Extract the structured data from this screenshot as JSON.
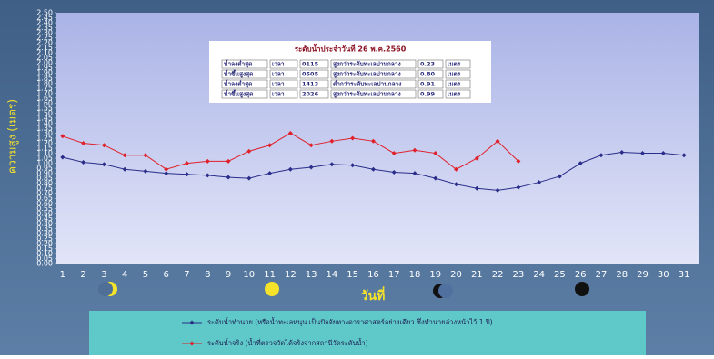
{
  "chart_data": {
    "type": "line",
    "ylabel": "ความสูง (เมตร)",
    "xlabel": "วันที่",
    "categories": [
      "1",
      "2",
      "3",
      "4",
      "5",
      "6",
      "7",
      "8",
      "9",
      "10",
      "11",
      "12",
      "13",
      "14",
      "15",
      "16",
      "17",
      "18",
      "19",
      "20",
      "21",
      "22",
      "23",
      "24",
      "25",
      "26",
      "27",
      "28",
      "29",
      "30",
      "31"
    ],
    "series": [
      {
        "name": "ระดับน้ำทำนาย (หรือน้ำทะเลหนุน เป็นปัจจัยทางดาราศาสตร์อย่างเดียว ซึ่งทำนายล่วงหน้าไว้ 1 ปี)",
        "color": "#2a2e8a",
        "values": [
          1.06,
          1.01,
          0.99,
          0.94,
          0.92,
          0.9,
          0.89,
          0.88,
          0.86,
          0.85,
          0.9,
          0.94,
          0.96,
          0.99,
          0.98,
          0.94,
          0.91,
          0.9,
          0.85,
          0.79,
          0.75,
          0.73,
          0.76,
          0.81,
          0.87,
          1.0,
          1.08,
          1.11,
          1.1,
          1.1,
          1.08
        ]
      },
      {
        "name": "ระดับน้ำจริง (น้ำที่ตรวจวัดได้จริงจากสถานีวัดระดับน้ำ)",
        "color": "#e0202a",
        "values": [
          1.27,
          1.2,
          1.18,
          1.08,
          1.08,
          0.94,
          1.0,
          1.02,
          1.02,
          1.12,
          1.18,
          1.3,
          1.18,
          1.22,
          1.25,
          1.22,
          1.1,
          1.13,
          1.1,
          0.94,
          1.05,
          1.22,
          1.02,
          null,
          null,
          null,
          null,
          null,
          null,
          null,
          null
        ]
      }
    ],
    "ylim": [
      0,
      2.5
    ],
    "yticks": [
      {
        "value": 0,
        "label": "0.00"
      },
      {
        "value": 0.05,
        "label": "0.05"
      },
      {
        "value": 0.1,
        "label": "0.10"
      },
      {
        "value": 0.15,
        "label": "0.15"
      },
      {
        "value": 0.2,
        "label": "0.20"
      },
      {
        "value": 0.25,
        "label": "0.25"
      },
      {
        "value": 0.3,
        "label": "0.30"
      },
      {
        "value": 0.35,
        "label": "0.35"
      },
      {
        "value": 0.4,
        "label": "0.40"
      },
      {
        "value": 0.45,
        "label": "0.45"
      },
      {
        "value": 0.5,
        "label": "0.50"
      },
      {
        "value": 0.55,
        "label": "0.55"
      },
      {
        "value": 0.6,
        "label": "0.60"
      },
      {
        "value": 0.65,
        "label": "0.65"
      },
      {
        "value": 0.7,
        "label": "0.70"
      },
      {
        "value": 0.75,
        "label": "0.75"
      },
      {
        "value": 0.8,
        "label": "0.80"
      },
      {
        "value": 0.85,
        "label": "0.85"
      },
      {
        "value": 0.9,
        "label": "0.90"
      },
      {
        "value": 0.95,
        "label": "0.95"
      },
      {
        "value": 1,
        "label": "1.00"
      },
      {
        "value": 1.05,
        "label": "1.05"
      },
      {
        "value": 1.1,
        "label": "1.10"
      },
      {
        "value": 1.15,
        "label": "1.15"
      },
      {
        "value": 1.2,
        "label": "1.20"
      },
      {
        "value": 1.25,
        "label": "1.25"
      },
      {
        "value": 1.3,
        "label": "1.30"
      },
      {
        "value": 1.35,
        "label": "1.35"
      },
      {
        "value": 1.4,
        "label": "1.40"
      },
      {
        "value": 1.45,
        "label": "1.45"
      },
      {
        "value": 1.5,
        "label": "1.50"
      },
      {
        "value": 1.55,
        "label": "1.55"
      },
      {
        "value": 1.6,
        "label": "1.60"
      },
      {
        "value": 1.65,
        "label": "1.65"
      },
      {
        "value": 1.7,
        "label": "1.70"
      },
      {
        "value": 1.75,
        "label": "1.75"
      },
      {
        "value": 1.8,
        "label": "1.80"
      },
      {
        "value": 1.85,
        "label": "1.85"
      },
      {
        "value": 1.9,
        "label": "1.90"
      },
      {
        "value": 1.95,
        "label": "1.95"
      },
      {
        "value": 2,
        "label": "2.00"
      },
      {
        "value": 2.05,
        "label": "2.05"
      },
      {
        "value": 2.1,
        "label": "2.10"
      },
      {
        "value": 2.15,
        "label": "2.15"
      },
      {
        "value": 2.2,
        "label": "2.20"
      },
      {
        "value": 2.25,
        "label": "2.25"
      },
      {
        "value": 2.3,
        "label": "2.30"
      },
      {
        "value": 2.35,
        "label": "2.35"
      },
      {
        "value": 2.4,
        "label": "2.40"
      },
      {
        "value": 2.45,
        "label": "2.45"
      },
      {
        "value": 2.5,
        "label": "2.50"
      }
    ],
    "legend": "bottom",
    "table": {
      "title": "ระดับน้ำประจำวันที่ 26 พ.ค.2560",
      "rows": [
        [
          "น้ำลงต่ำสุด",
          "เวลา",
          "0115",
          "สูงกว่าระดับทะเลปานกลาง",
          "0.23",
          "เมตร"
        ],
        [
          "น้ำขึ้นสูงสุด",
          "เวลา",
          "0505",
          "สูงกว่าระดับทะเลปานกลาง",
          "0.80",
          "เมตร"
        ],
        [
          "น้ำลงต่ำสุด",
          "เวลา",
          "1413",
          "ต่ำกว่าระดับทะเลปานกลาง",
          "0.91",
          "เมตร"
        ],
        [
          "น้ำขึ้นสูงสุด",
          "เวลา",
          "2026",
          "สูงกว่าระดับทะเลปานกลาง",
          "0.99",
          "เมตร"
        ]
      ]
    }
  }
}
